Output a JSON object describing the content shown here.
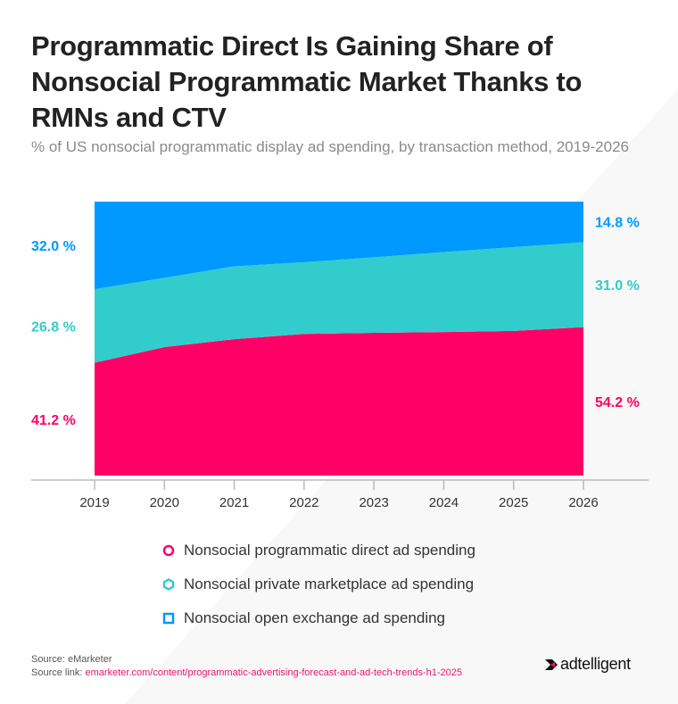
{
  "title": "Programmatic Direct Is Gaining Share of Nonsocial Programmatic Market Thanks to RMNs and CTV",
  "subtitle": "% of US nonsocial programmatic display ad spending, by transaction method, 2019-2026",
  "chart_data": {
    "type": "area",
    "stacked": true,
    "percent": true,
    "x": [
      "2019",
      "2020",
      "2021",
      "2022",
      "2023",
      "2024",
      "2025",
      "2026"
    ],
    "ylim": [
      0,
      100
    ],
    "grid": false,
    "legend_position": "bottom",
    "series": [
      {
        "name": "Nonsocial programmatic direct ad spending",
        "color": "#ff0066",
        "values": [
          41.2,
          46.9,
          49.8,
          51.7,
          52.1,
          52.4,
          52.8,
          54.2
        ],
        "start_label": "41.2 %",
        "end_label": "54.2 %"
      },
      {
        "name": "Nonsocial private marketplace ad spending",
        "color": "#33cccc",
        "values": [
          26.8,
          25.3,
          26.6,
          26.2,
          27.6,
          29.2,
          30.6,
          31.0
        ],
        "start_label": "26.8 %",
        "end_label": "31.0 %"
      },
      {
        "name": "Nonsocial open exchange ad spending",
        "color": "#0099ff",
        "values": [
          32.0,
          27.8,
          23.6,
          22.1,
          20.3,
          18.4,
          16.6,
          14.8
        ],
        "start_label": "32.0 %",
        "end_label": "14.8 %"
      }
    ]
  },
  "footer": {
    "source_label": "Source: ",
    "source": "eMarketer",
    "link_label": "Source link: ",
    "link": "emarketer.com/content/programmatic-advertising-forecast-and-ad-tech-trends-h1-2025",
    "logo": "adtelligent"
  }
}
